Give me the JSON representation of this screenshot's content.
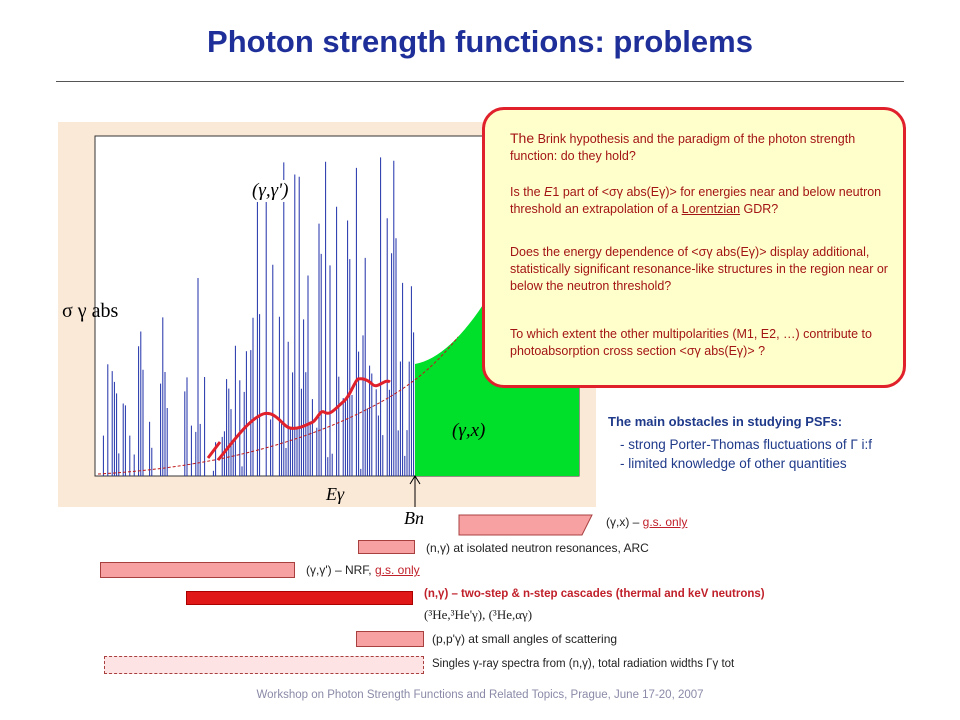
{
  "title": "Photon strength functions: problems",
  "plot": {
    "y_axis_label": "σ γ abs",
    "label_elastic": "(γ,γ')",
    "label_gx": "(γ,x)",
    "x_axis_label": "Eγ",
    "threshold_label": "Bn"
  },
  "callout": {
    "q1_lead": "The",
    "q1_rest": " Brink hypothesis and the paradigm of the photon strength function: do they hold?",
    "q2_a": "Is the ",
    "q2_b": "E",
    "q2_c": "1 part of <σγ abs(Eγ)> for energies near and below neutron threshold an extrapolation of a ",
    "q2_link": "Lorentzian",
    "q2_d": " GDR?",
    "q3": "Does the energy dependence of <σγ abs(Eγ)> display additional, statistically significant resonance-like structures in the region near or below the neutron threshold?",
    "q4": "To which extent the other multipolarities (M1, E2, …) contribute to photoabsorption cross section <σγ abs(Eγ)> ?"
  },
  "obstacles": {
    "heading": "The main obstacles in studying PSFs:",
    "item1": "- strong Porter-Thomas fluctuations of Γ i:f",
    "item2": "- limited knowledge of other quantities"
  },
  "methods": [
    {
      "pre": "(γ,x) – ",
      "link": "g.s. only",
      "post": ""
    },
    {
      "pre": "(n,γ) at isolated neutron resonances, ARC",
      "link": "",
      "post": ""
    },
    {
      "pre": "(γ,γ') – NRF, ",
      "link": "g.s. only",
      "post": ""
    },
    {
      "pre": "(n,γ) – two-step & n-step cascades (thermal and keV neutrons)",
      "link": "",
      "post": ""
    },
    {
      "pre": "(³He,³He'γ), (³He,αγ)",
      "link": "",
      "post": ""
    },
    {
      "pre": "(p,p'γ) at small angles of scattering",
      "link": "",
      "post": ""
    },
    {
      "pre": "Singles γ-ray spectra from (n,γ), total radiation widths Γγ tot",
      "link": "",
      "post": ""
    }
  ],
  "footer": "Workshop on Photon Strength Functions and Related Topics, Prague, June 17-20, 2007",
  "colors": {
    "title": "#1f2f9a",
    "callout_border": "#e0202a",
    "callout_fill": "#ffffcc",
    "green": "#00e02a",
    "plot_bg": "#fbe9d7"
  }
}
